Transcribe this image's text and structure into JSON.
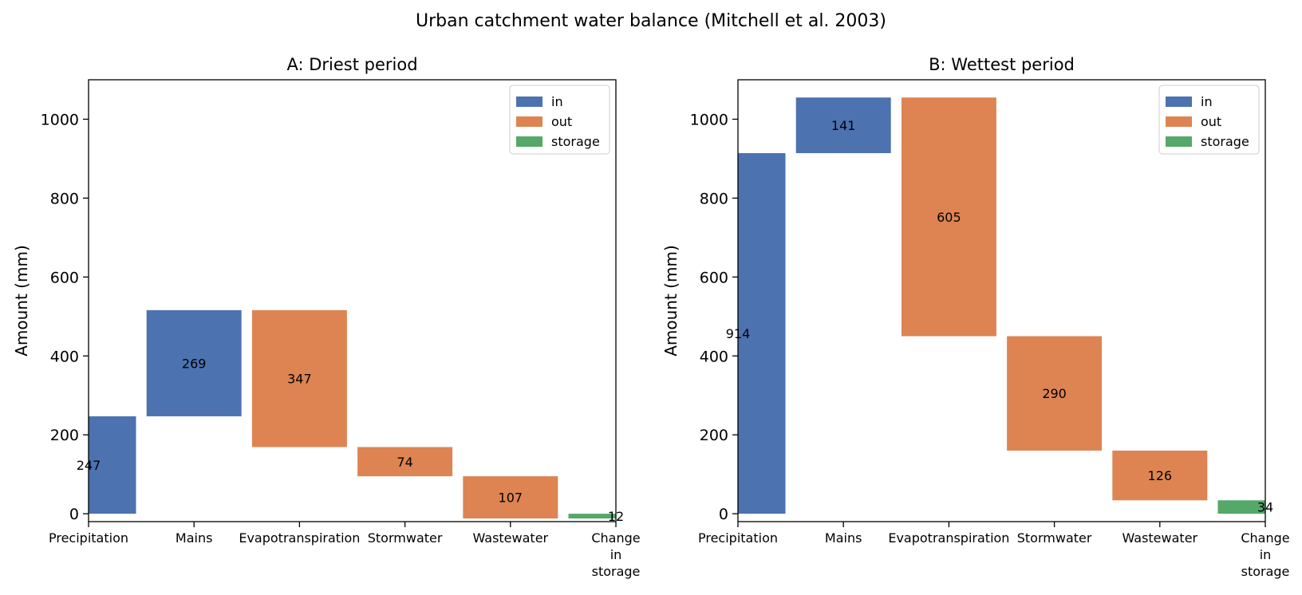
{
  "figure": {
    "title": "Urban catchment water balance (Mitchell et al. 2003)"
  },
  "colors": {
    "in": "#4c72b0",
    "out": "#dd8452",
    "storage": "#55a868"
  },
  "chart_data": [
    {
      "type": "bar",
      "title": "A: Driest period",
      "ylabel": "Amount (mm)",
      "xlabel": "",
      "ylim": [
        -20,
        1100
      ],
      "yticks": [
        0,
        200,
        400,
        600,
        800,
        1000
      ],
      "categories": [
        "Precipitation",
        "Mains",
        "Evapotranspiration",
        "Stormwater",
        "Wastewater",
        "Change in storage"
      ],
      "bars": [
        {
          "category": "Precipitation",
          "group": "in",
          "bottom": 0,
          "top": 247,
          "value": 247,
          "label": "247"
        },
        {
          "category": "Mains",
          "group": "in",
          "bottom": 247,
          "top": 516,
          "value": 269,
          "label": "269"
        },
        {
          "category": "Evapotranspiration",
          "group": "out",
          "bottom": 169,
          "top": 516,
          "value": 347,
          "label": "347"
        },
        {
          "category": "Stormwater",
          "group": "out",
          "bottom": 95,
          "top": 169,
          "value": 74,
          "label": "74"
        },
        {
          "category": "Wastewater",
          "group": "out",
          "bottom": -12,
          "top": 95,
          "value": 107,
          "label": "107"
        },
        {
          "category": "Change in storage",
          "group": "storage",
          "bottom": -12,
          "top": 0,
          "value": 12,
          "label": "12"
        }
      ],
      "legend": {
        "position": "upper right",
        "entries": [
          {
            "key": "in",
            "label": "in"
          },
          {
            "key": "out",
            "label": "out"
          },
          {
            "key": "storage",
            "label": "storage"
          }
        ]
      },
      "grid": false
    },
    {
      "type": "bar",
      "title": "B: Wettest period",
      "ylabel": "Amount (mm)",
      "xlabel": "",
      "ylim": [
        -20,
        1100
      ],
      "yticks": [
        0,
        200,
        400,
        600,
        800,
        1000
      ],
      "categories": [
        "Precipitation",
        "Mains",
        "Evapotranspiration",
        "Stormwater",
        "Wastewater",
        "Change in storage"
      ],
      "bars": [
        {
          "category": "Precipitation",
          "group": "in",
          "bottom": 0,
          "top": 914,
          "value": 914,
          "label": "914"
        },
        {
          "category": "Mains",
          "group": "in",
          "bottom": 914,
          "top": 1055,
          "value": 141,
          "label": "141"
        },
        {
          "category": "Evapotranspiration",
          "group": "out",
          "bottom": 450,
          "top": 1055,
          "value": 605,
          "label": "605"
        },
        {
          "category": "Stormwater",
          "group": "out",
          "bottom": 160,
          "top": 450,
          "value": 290,
          "label": "290"
        },
        {
          "category": "Wastewater",
          "group": "out",
          "bottom": 34,
          "top": 160,
          "value": 126,
          "label": "126"
        },
        {
          "category": "Change in storage",
          "group": "storage",
          "bottom": 0,
          "top": 34,
          "value": 34,
          "label": "34"
        }
      ],
      "legend": {
        "position": "upper right",
        "entries": [
          {
            "key": "in",
            "label": "in"
          },
          {
            "key": "out",
            "label": "out"
          },
          {
            "key": "storage",
            "label": "storage"
          }
        ]
      },
      "grid": false
    }
  ]
}
